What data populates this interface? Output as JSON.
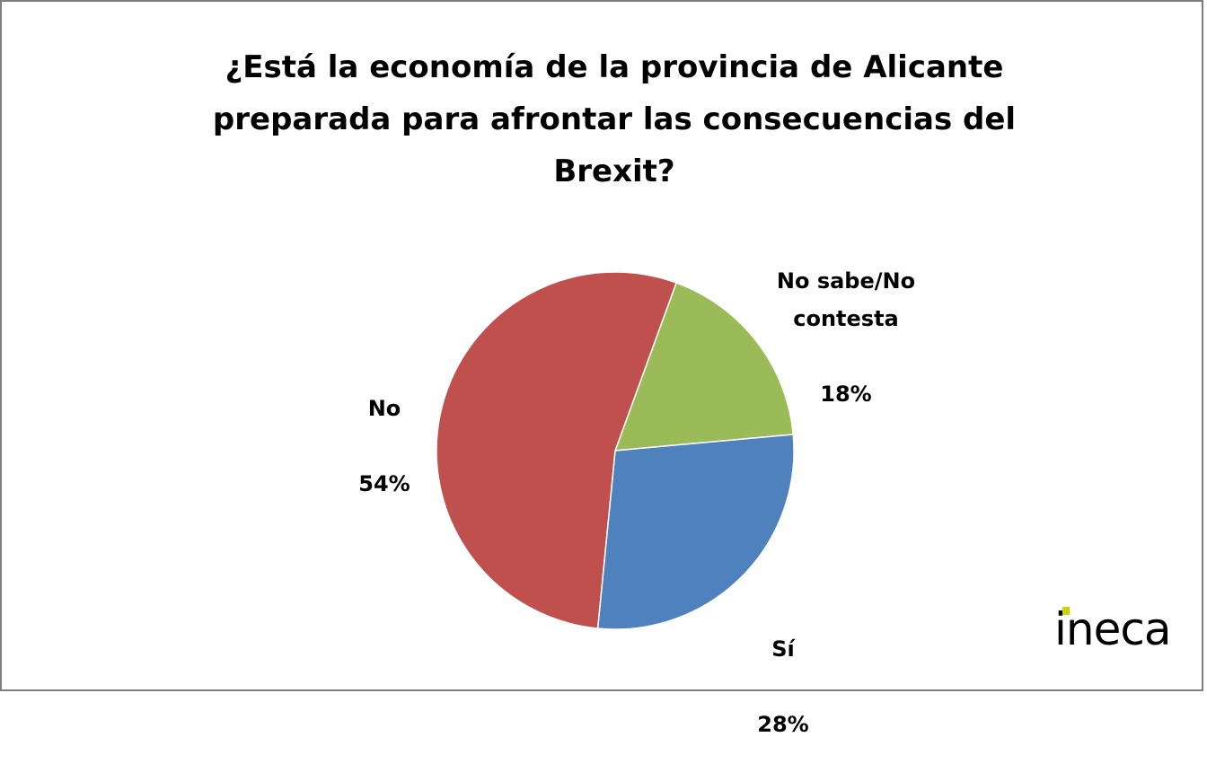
{
  "chart_data": {
    "type": "pie",
    "title": "¿Está la economía de la provincia de Alicante\npreparada para afrontar las consecuencias del\nBrexit?",
    "slices": [
      {
        "label": "No sabe/No\ncontesta",
        "percent_label": "18%",
        "value": 18,
        "color": "#9BBB59"
      },
      {
        "label": "Sí",
        "percent_label": "28%",
        "value": 28,
        "color": "#4F81BD"
      },
      {
        "label": "No",
        "percent_label": "54%",
        "value": 54,
        "color": "#C0504D"
      }
    ]
  },
  "logo": {
    "text": "ineca",
    "accent_color": "#c9d400"
  }
}
